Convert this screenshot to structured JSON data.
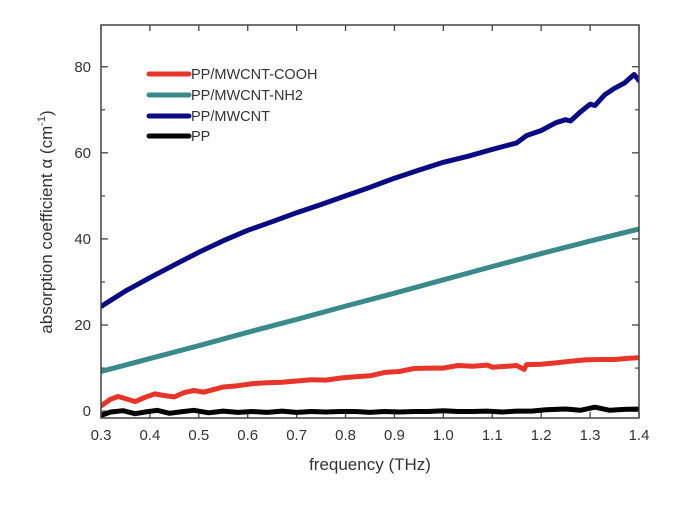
{
  "chart_data": {
    "type": "line",
    "title": "",
    "xlabel": "frequency (THz)",
    "ylabel_main": "absorption coefficient α (cm",
    "ylabel_sup": "-1",
    "ylabel_close": ")",
    "xlim": [
      0.3,
      1.4
    ],
    "ylim": [
      -1.6,
      89.7
    ],
    "xticks": [
      0.3,
      0.4,
      0.5,
      0.6,
      0.7,
      0.8,
      0.9,
      1.0,
      1.1,
      1.2,
      1.3,
      1.4
    ],
    "xtick_labels": [
      "0.3",
      "0.4",
      "0.5",
      "0.6",
      "0.7",
      "0.8",
      "0.9",
      "1.0",
      "1.1",
      "1.2",
      "1.3",
      "1.4"
    ],
    "yticks_major": [
      0,
      20,
      40,
      60,
      80
    ],
    "ytick_labels": [
      "0",
      "20",
      "40",
      "60",
      "80"
    ],
    "yticks_minor": [
      10,
      30,
      50,
      70
    ],
    "grid": false,
    "legend_position": "top-left",
    "series": [
      {
        "name": "PP/MWCNT-COOH",
        "color": "#e8352a",
        "x": [
          0.3,
          0.32,
          0.335,
          0.35,
          0.37,
          0.39,
          0.41,
          0.43,
          0.45,
          0.47,
          0.49,
          0.51,
          0.53,
          0.55,
          0.58,
          0.61,
          0.64,
          0.67,
          0.7,
          0.73,
          0.76,
          0.79,
          0.82,
          0.85,
          0.88,
          0.91,
          0.94,
          0.97,
          1.0,
          1.03,
          1.06,
          1.09,
          1.1,
          1.13,
          1.15,
          1.165,
          1.17,
          1.2,
          1.23,
          1.26,
          1.29,
          1.32,
          1.35,
          1.38,
          1.4
        ],
        "values": [
          1.2,
          2.8,
          3.4,
          2.9,
          2.2,
          3.2,
          4.0,
          3.6,
          3.3,
          4.3,
          4.8,
          4.4,
          5.0,
          5.6,
          5.9,
          6.4,
          6.6,
          6.7,
          7.0,
          7.3,
          7.2,
          7.7,
          8.0,
          8.2,
          9.0,
          9.2,
          9.9,
          10.0,
          10.0,
          10.6,
          10.4,
          10.7,
          10.2,
          10.4,
          10.6,
          9.7,
          10.8,
          10.9,
          11.2,
          11.6,
          11.9,
          12.0,
          12.0,
          12.3,
          12.4
        ]
      },
      {
        "name": "PP/MWCNT-NH2",
        "color": "#3b8a8a",
        "x": [
          0.3,
          0.4,
          0.5,
          0.6,
          0.7,
          0.8,
          0.9,
          1.0,
          1.1,
          1.2,
          1.3,
          1.4
        ],
        "values": [
          9.2,
          12.2,
          15.2,
          18.3,
          21.3,
          24.4,
          27.4,
          30.5,
          33.6,
          36.6,
          39.5,
          42.3
        ]
      },
      {
        "name": "PP/MWCNT",
        "color": "#0a0a82",
        "x": [
          0.3,
          0.35,
          0.4,
          0.45,
          0.5,
          0.55,
          0.6,
          0.65,
          0.7,
          0.75,
          0.8,
          0.85,
          0.9,
          0.95,
          1.0,
          1.05,
          1.1,
          1.15,
          1.17,
          1.2,
          1.23,
          1.25,
          1.26,
          1.28,
          1.3,
          1.31,
          1.33,
          1.35,
          1.37,
          1.39,
          1.4
        ],
        "values": [
          24.3,
          27.9,
          31.0,
          34.0,
          36.9,
          39.6,
          42.0,
          44.0,
          46.1,
          48.0,
          50.0,
          52.0,
          54.1,
          56.0,
          57.8,
          59.2,
          60.8,
          62.3,
          64.0,
          65.2,
          67.0,
          67.7,
          67.4,
          69.5,
          71.3,
          71.0,
          73.5,
          75.0,
          76.2,
          78.2,
          76.8
        ]
      },
      {
        "name": "PP",
        "color": "#000000",
        "x": [
          0.3,
          0.32,
          0.345,
          0.37,
          0.39,
          0.415,
          0.44,
          0.46,
          0.49,
          0.52,
          0.55,
          0.58,
          0.61,
          0.64,
          0.67,
          0.7,
          0.73,
          0.76,
          0.79,
          0.82,
          0.85,
          0.88,
          0.91,
          0.94,
          0.97,
          1.0,
          1.03,
          1.06,
          1.09,
          1.12,
          1.15,
          1.18,
          1.21,
          1.25,
          1.28,
          1.31,
          1.34,
          1.37,
          1.4
        ],
        "values": [
          -1.0,
          -0.2,
          0.1,
          -0.6,
          -0.2,
          0.2,
          -0.5,
          -0.2,
          0.2,
          -0.4,
          0.0,
          -0.3,
          -0.1,
          -0.3,
          0.0,
          -0.3,
          -0.1,
          -0.2,
          -0.1,
          -0.1,
          -0.3,
          -0.1,
          -0.2,
          -0.1,
          -0.1,
          0.1,
          -0.1,
          -0.1,
          0.0,
          -0.2,
          0.0,
          0.0,
          0.3,
          0.5,
          0.2,
          0.9,
          0.2,
          0.4,
          0.5
        ]
      }
    ]
  }
}
